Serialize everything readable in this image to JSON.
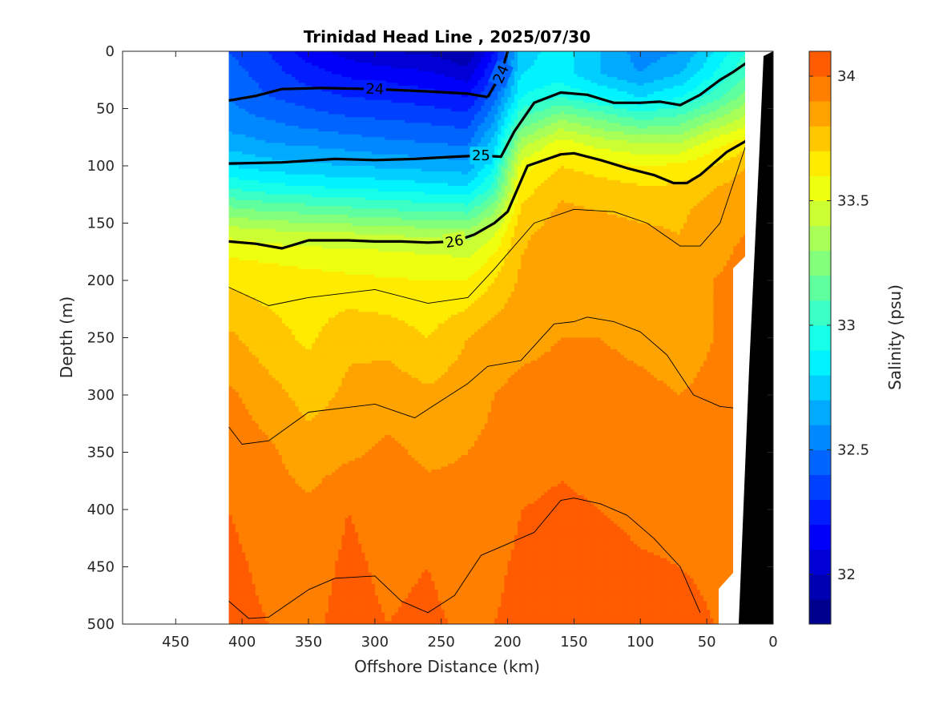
{
  "chart_data": {
    "type": "heatmap",
    "title": "Trinidad Head Line , 2025/07/30",
    "xlabel": "Offshore Distance (km)",
    "ylabel": "Depth (m)",
    "xlim": [
      490,
      0
    ],
    "ylim": [
      0,
      500
    ],
    "x_reversed": true,
    "y_reversed": true,
    "xticks": [
      450,
      400,
      350,
      300,
      250,
      200,
      150,
      100,
      50,
      0
    ],
    "yticks": [
      0,
      50,
      100,
      150,
      200,
      250,
      300,
      350,
      400,
      450,
      500
    ],
    "data_extent_km": [
      410,
      20
    ],
    "colorbar": {
      "label": "Salinity (psu)",
      "limits": [
        31.8,
        34.1
      ],
      "ticks": [
        32,
        32.5,
        33,
        33.5,
        34
      ],
      "levels": [
        31.8,
        31.9,
        32.0,
        32.1,
        32.2,
        32.3,
        32.4,
        32.5,
        32.6,
        32.7,
        32.8,
        32.9,
        33.0,
        33.1,
        33.2,
        33.3,
        33.4,
        33.5,
        33.6,
        33.7,
        33.8,
        33.9,
        34.0,
        34.1
      ],
      "colors": [
        "#00008f",
        "#0000b3",
        "#0000d6",
        "#0000fa",
        "#001cff",
        "#0040ff",
        "#0064ff",
        "#0088ff",
        "#00abff",
        "#00cfff",
        "#00f3ff",
        "#17ffe8",
        "#3bffc4",
        "#5fffa0",
        "#83ff7c",
        "#a7ff58",
        "#cbff34",
        "#efff10",
        "#ffeb00",
        "#ffc700",
        "#ffa300",
        "#ff7f00",
        "#ff5b00",
        "#ff3700",
        "#ff1300",
        "#ef0000",
        "#cb0000",
        "#a70000"
      ]
    },
    "x": [
      410,
      380,
      350,
      320,
      290,
      260,
      230,
      210,
      190,
      160,
      130,
      100,
      70,
      45,
      20
    ],
    "depth": [
      0,
      20,
      40,
      60,
      80,
      100,
      120,
      140,
      160,
      180,
      200,
      250,
      300,
      350,
      400,
      450,
      500
    ],
    "salinity": [
      [
        32.4,
        32.3,
        32.15,
        32.05,
        32.0,
        31.98,
        31.9,
        32.2,
        32.75,
        32.85,
        32.7,
        32.55,
        32.6,
        32.8,
        33.0
      ],
      [
        32.45,
        32.35,
        32.25,
        32.18,
        32.15,
        32.12,
        32.05,
        32.3,
        32.8,
        32.85,
        32.7,
        32.6,
        32.7,
        32.9,
        33.1
      ],
      [
        32.5,
        32.4,
        32.35,
        32.3,
        32.28,
        32.25,
        32.2,
        32.45,
        32.9,
        33.0,
        32.9,
        32.8,
        32.9,
        33.05,
        33.25
      ],
      [
        32.55,
        32.5,
        32.45,
        32.42,
        32.4,
        32.38,
        32.35,
        32.6,
        33.1,
        33.3,
        33.2,
        33.1,
        33.15,
        33.3,
        33.45
      ],
      [
        32.65,
        32.6,
        32.58,
        32.55,
        32.52,
        32.5,
        32.48,
        32.75,
        33.35,
        33.55,
        33.45,
        33.4,
        33.4,
        33.55,
        33.65
      ],
      [
        32.8,
        32.75,
        32.72,
        32.7,
        32.68,
        32.66,
        32.64,
        32.9,
        33.55,
        33.7,
        33.65,
        33.6,
        33.62,
        33.7,
        33.8
      ],
      [
        33.0,
        32.95,
        32.92,
        32.9,
        32.88,
        32.85,
        32.82,
        33.05,
        33.65,
        33.78,
        33.75,
        33.72,
        33.72,
        33.8,
        33.85
      ],
      [
        33.25,
        33.2,
        33.18,
        33.15,
        33.12,
        33.1,
        33.08,
        33.3,
        33.72,
        33.82,
        33.8,
        33.78,
        33.78,
        33.85,
        33.88
      ],
      [
        33.48,
        33.45,
        33.43,
        33.42,
        33.4,
        33.38,
        33.36,
        33.5,
        33.78,
        33.85,
        33.84,
        33.82,
        33.8,
        33.88,
        33.9
      ],
      [
        33.6,
        33.58,
        33.56,
        33.55,
        33.54,
        33.52,
        33.5,
        33.62,
        33.8,
        33.86,
        33.85,
        33.84,
        33.82,
        33.88,
        33.92
      ],
      [
        33.68,
        33.66,
        33.64,
        33.62,
        33.61,
        33.6,
        33.6,
        33.7,
        33.82,
        33.87,
        33.86,
        33.85,
        33.84,
        33.9,
        33.93
      ],
      [
        33.82,
        33.74,
        33.68,
        33.78,
        33.76,
        33.7,
        33.8,
        33.86,
        33.88,
        33.9,
        33.9,
        33.88,
        33.86,
        33.9,
        33.92
      ],
      [
        33.92,
        33.84,
        33.76,
        33.82,
        33.86,
        33.82,
        33.86,
        33.9,
        33.92,
        33.92,
        33.93,
        33.92,
        33.9,
        33.92,
        33.93
      ],
      [
        33.97,
        33.92,
        33.84,
        33.88,
        33.92,
        33.88,
        33.9,
        33.92,
        33.95,
        33.98,
        33.96,
        33.94,
        33.94,
        33.95,
        33.95
      ],
      [
        34.0,
        33.96,
        33.92,
        34.0,
        33.96,
        33.94,
        33.93,
        33.94,
        34.0,
        34.02,
        34.0,
        33.98,
        33.97,
        33.97,
        33.96
      ],
      [
        34.02,
        33.98,
        33.96,
        34.02,
        33.98,
        34.0,
        33.96,
        33.98,
        34.02,
        34.04,
        34.03,
        34.01,
        34.0,
        33.99,
        33.98
      ],
      [
        34.03,
        34.0,
        33.98,
        34.03,
        34.0,
        34.02,
        33.98,
        34.0,
        34.03,
        34.08,
        34.04,
        34.02,
        34.02,
        34.0,
        34.0
      ]
    ],
    "density_contours": [
      {
        "label": "24",
        "bold": true,
        "x": [
          410,
          390,
          370,
          340,
          300,
          260,
          230,
          215
        ],
        "depth": [
          43,
          39,
          33,
          32,
          33,
          35,
          37,
          40
        ]
      },
      {
        "label": "24",
        "bold": true,
        "x": [
          215,
          205,
          200
        ],
        "depth": [
          40,
          20,
          0
        ]
      },
      {
        "label": "25",
        "bold": true,
        "x": [
          410,
          370,
          330,
          300,
          270,
          240,
          220,
          205,
          195,
          180,
          160,
          140,
          120,
          100,
          85,
          70,
          55,
          40,
          30,
          20
        ],
        "depth": [
          98,
          97,
          94,
          95,
          94,
          92,
          91,
          92,
          70,
          45,
          36,
          38,
          45,
          45,
          44,
          47,
          38,
          25,
          18,
          10
        ]
      },
      {
        "label": "26",
        "bold": true,
        "x": [
          410,
          390,
          370,
          350,
          320,
          300,
          280,
          260,
          240,
          225,
          210,
          200,
          185,
          160,
          150,
          130,
          110,
          90,
          75,
          65,
          55,
          45,
          35,
          20
        ],
        "depth": [
          166,
          168,
          172,
          165,
          165,
          166,
          166,
          167,
          166,
          160,
          150,
          140,
          100,
          90,
          89,
          95,
          102,
          108,
          115,
          115,
          108,
          98,
          88,
          78
        ]
      },
      {
        "label": "",
        "bold": false,
        "x": [
          410,
          380,
          350,
          300,
          260,
          230,
          210,
          180,
          150,
          120,
          95,
          70,
          55,
          40,
          20
        ],
        "depth": [
          206,
          222,
          215,
          208,
          220,
          215,
          190,
          150,
          138,
          140,
          150,
          170,
          170,
          150,
          80
        ]
      },
      {
        "label": "",
        "bold": false,
        "x": [
          410,
          400,
          380,
          350,
          300,
          270,
          250,
          230,
          215,
          190,
          165,
          150,
          140,
          120,
          100,
          80,
          60,
          40,
          25
        ],
        "depth": [
          328,
          343,
          340,
          315,
          308,
          320,
          305,
          290,
          275,
          270,
          238,
          236,
          232,
          236,
          245,
          265,
          300,
          310,
          312
        ]
      },
      {
        "label": "",
        "bold": false,
        "x": [
          410,
          395,
          380,
          350,
          330,
          300,
          280,
          260,
          240,
          220,
          200,
          180,
          160,
          150,
          130,
          110,
          90,
          70,
          55
        ],
        "depth": [
          480,
          495,
          494,
          470,
          460,
          458,
          480,
          490,
          475,
          440,
          430,
          420,
          392,
          390,
          395,
          405,
          425,
          450,
          490
        ]
      }
    ]
  }
}
